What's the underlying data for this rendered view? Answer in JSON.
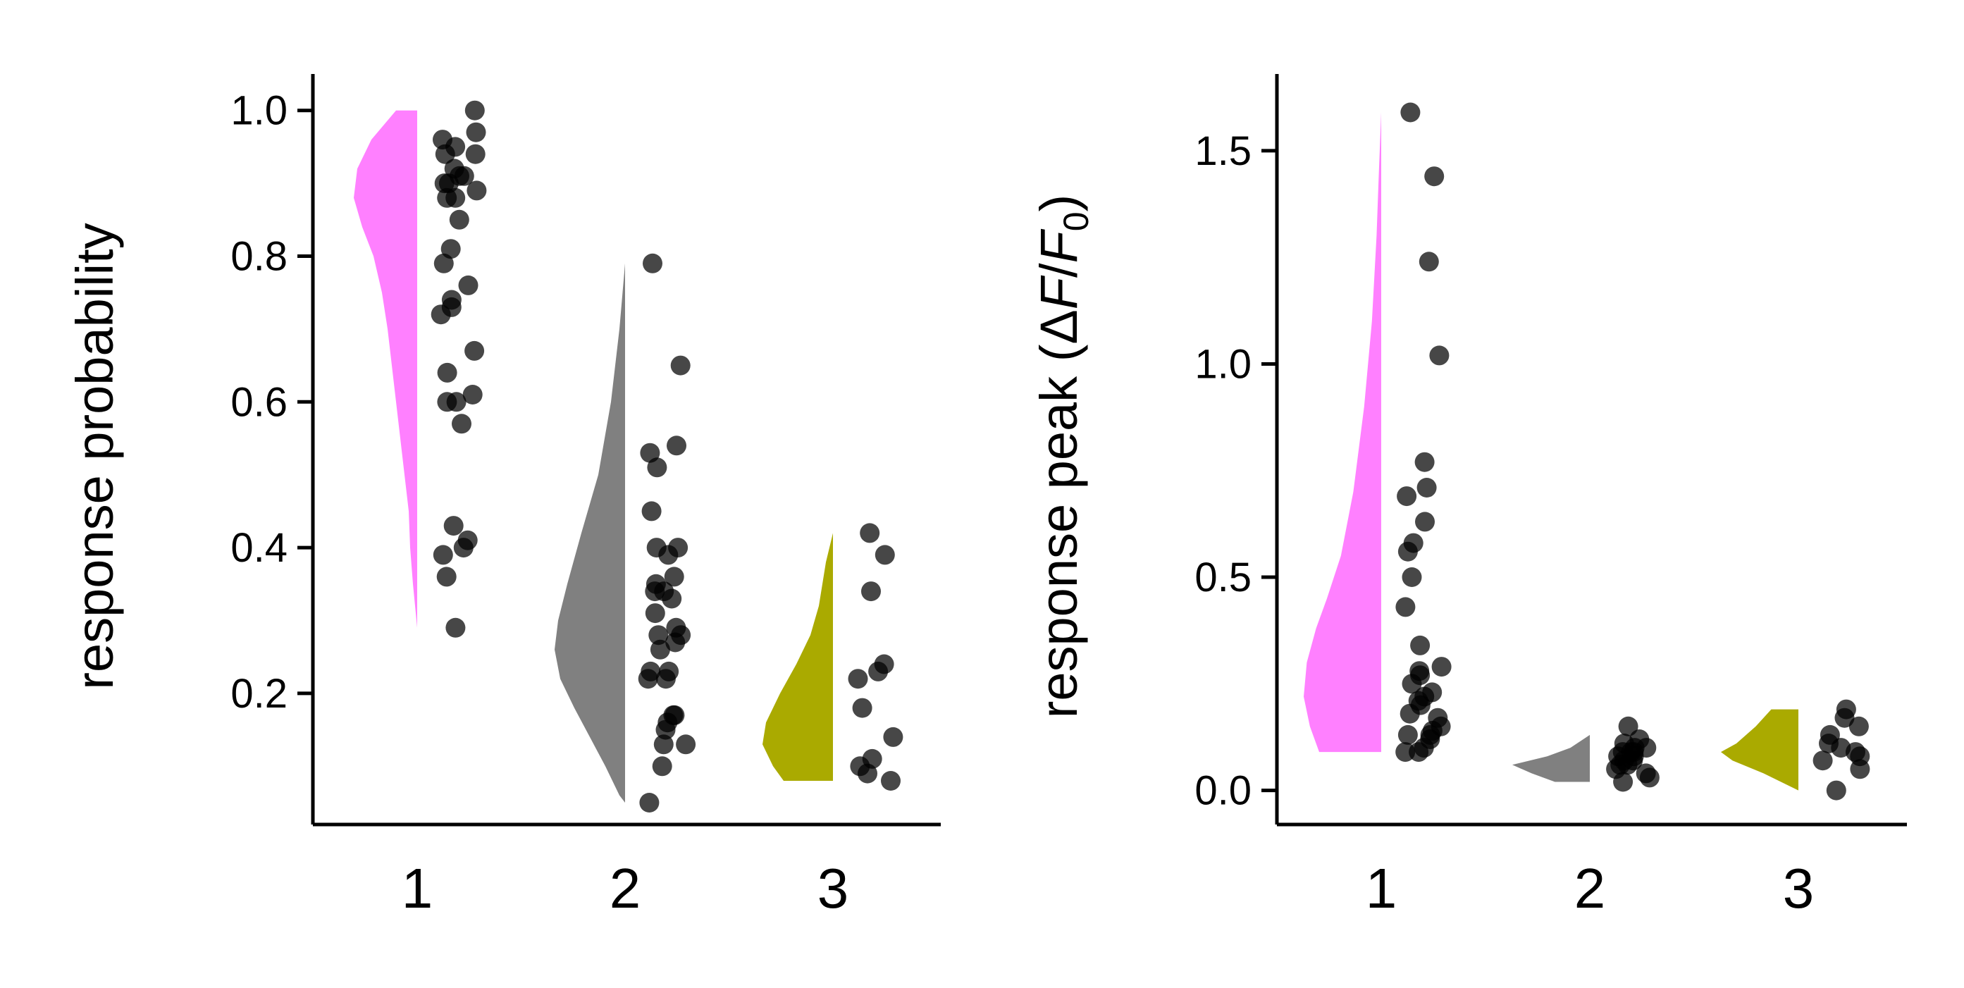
{
  "chart_data": [
    {
      "type": "raincloud",
      "ylabel": "response probability",
      "categories": [
        "1",
        "2",
        "3"
      ],
      "yticks": [
        "0.2",
        "0.4",
        "0.6",
        "0.8",
        "1.0"
      ],
      "ylim": [
        0.02,
        1.05
      ],
      "series": [
        {
          "category": "1",
          "color": "#ff80ff",
          "points": [
            1.0,
            0.97,
            0.96,
            0.95,
            0.94,
            0.94,
            0.92,
            0.91,
            0.91,
            0.9,
            0.9,
            0.89,
            0.88,
            0.88,
            0.85,
            0.81,
            0.79,
            0.76,
            0.74,
            0.73,
            0.72,
            0.67,
            0.64,
            0.61,
            0.6,
            0.6,
            0.57,
            0.43,
            0.41,
            0.4,
            0.39,
            0.36,
            0.29
          ],
          "density": [
            [
              1.0,
              0.3
            ],
            [
              0.96,
              0.65
            ],
            [
              0.92,
              0.85
            ],
            [
              0.88,
              0.9
            ],
            [
              0.84,
              0.78
            ],
            [
              0.8,
              0.62
            ],
            [
              0.75,
              0.5
            ],
            [
              0.7,
              0.42
            ],
            [
              0.65,
              0.36
            ],
            [
              0.6,
              0.3
            ],
            [
              0.55,
              0.24
            ],
            [
              0.5,
              0.18
            ],
            [
              0.45,
              0.12
            ],
            [
              0.4,
              0.1
            ],
            [
              0.35,
              0.06
            ],
            [
              0.29,
              0.0
            ]
          ]
        },
        {
          "category": "2",
          "color": "#808080",
          "points": [
            0.79,
            0.65,
            0.54,
            0.53,
            0.51,
            0.45,
            0.4,
            0.4,
            0.39,
            0.36,
            0.35,
            0.34,
            0.34,
            0.33,
            0.31,
            0.29,
            0.28,
            0.28,
            0.27,
            0.26,
            0.23,
            0.23,
            0.22,
            0.22,
            0.17,
            0.17,
            0.16,
            0.15,
            0.13,
            0.13,
            0.1,
            0.05
          ],
          "density": [
            [
              0.79,
              0.0
            ],
            [
              0.7,
              0.08
            ],
            [
              0.6,
              0.2
            ],
            [
              0.5,
              0.38
            ],
            [
              0.42,
              0.62
            ],
            [
              0.35,
              0.82
            ],
            [
              0.3,
              0.95
            ],
            [
              0.26,
              1.0
            ],
            [
              0.22,
              0.92
            ],
            [
              0.18,
              0.72
            ],
            [
              0.14,
              0.5
            ],
            [
              0.1,
              0.28
            ],
            [
              0.06,
              0.08
            ],
            [
              0.05,
              0.0
            ]
          ]
        },
        {
          "category": "3",
          "color": "#aaaa00",
          "points": [
            0.42,
            0.39,
            0.34,
            0.24,
            0.23,
            0.22,
            0.18,
            0.14,
            0.11,
            0.1,
            0.09,
            0.08
          ],
          "density": [
            [
              0.42,
              0.0
            ],
            [
              0.38,
              0.1
            ],
            [
              0.32,
              0.2
            ],
            [
              0.28,
              0.32
            ],
            [
              0.24,
              0.52
            ],
            [
              0.2,
              0.75
            ],
            [
              0.16,
              0.95
            ],
            [
              0.13,
              1.0
            ],
            [
              0.1,
              0.85
            ],
            [
              0.08,
              0.7
            ]
          ]
        }
      ]
    },
    {
      "type": "raincloud",
      "ylabel": "response peak (ΔF/F0)",
      "ylabel_parts": [
        "response peak (Δ",
        "F",
        "/",
        "F",
        "0",
        ")"
      ],
      "categories": [
        "1",
        "2",
        "3"
      ],
      "yticks": [
        "0.0",
        "0.5",
        "1.0",
        "1.5"
      ],
      "ylim": [
        -0.08,
        1.68
      ],
      "series": [
        {
          "category": "1",
          "color": "#ff80ff",
          "points": [
            1.59,
            1.44,
            1.24,
            1.02,
            0.77,
            0.71,
            0.69,
            0.63,
            0.58,
            0.56,
            0.5,
            0.43,
            0.34,
            0.29,
            0.28,
            0.27,
            0.25,
            0.23,
            0.22,
            0.21,
            0.2,
            0.18,
            0.17,
            0.15,
            0.14,
            0.13,
            0.13,
            0.12,
            0.1,
            0.09,
            0.09
          ],
          "density": [
            [
              1.59,
              0.0
            ],
            [
              1.45,
              0.03
            ],
            [
              1.3,
              0.06
            ],
            [
              1.1,
              0.12
            ],
            [
              0.9,
              0.22
            ],
            [
              0.7,
              0.36
            ],
            [
              0.55,
              0.52
            ],
            [
              0.45,
              0.7
            ],
            [
              0.38,
              0.84
            ],
            [
              0.3,
              0.96
            ],
            [
              0.22,
              1.0
            ],
            [
              0.15,
              0.92
            ],
            [
              0.09,
              0.8
            ]
          ]
        },
        {
          "category": "2",
          "color": "#808080",
          "points": [
            0.15,
            0.12,
            0.11,
            0.1,
            0.1,
            0.09,
            0.09,
            0.09,
            0.08,
            0.08,
            0.07,
            0.07,
            0.06,
            0.06,
            0.05,
            0.04,
            0.03,
            0.02
          ],
          "density": [
            [
              0.13,
              0.0
            ],
            [
              0.1,
              0.25
            ],
            [
              0.08,
              0.55
            ],
            [
              0.06,
              1.0
            ],
            [
              0.04,
              0.75
            ],
            [
              0.02,
              0.45
            ]
          ]
        },
        {
          "category": "3",
          "color": "#aaaa00",
          "points": [
            0.19,
            0.17,
            0.15,
            0.13,
            0.11,
            0.1,
            0.09,
            0.08,
            0.07,
            0.05,
            0.0
          ],
          "density": [
            [
              0.19,
              0.35
            ],
            [
              0.15,
              0.55
            ],
            [
              0.11,
              0.8
            ],
            [
              0.09,
              1.0
            ],
            [
              0.07,
              0.85
            ],
            [
              0.04,
              0.45
            ],
            [
              0.0,
              0.0
            ]
          ]
        }
      ]
    }
  ]
}
